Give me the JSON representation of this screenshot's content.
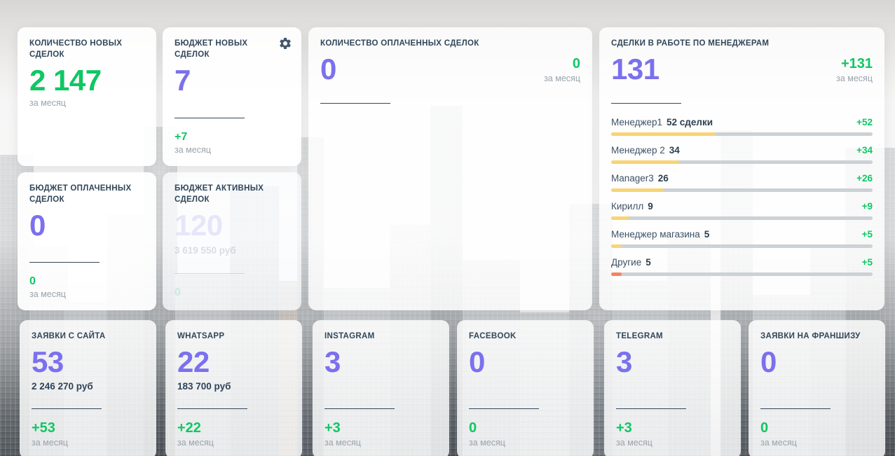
{
  "colors": {
    "accent_purple": "#7b70ee",
    "positive_green": "#0fc763",
    "title_navy": "#31465a",
    "muted_gray": "#99a3ac",
    "bar_track": "#ccd1d5",
    "bar_yellow": "#f7d476",
    "bar_orange": "#f4845c"
  },
  "cards": {
    "new_deals_count": {
      "title": "КОЛИЧЕСТВО НОВЫХ СДЕЛОК",
      "value": "2 147",
      "period": "за месяц"
    },
    "new_deals_budget": {
      "title": "БЮДЖЕТ НОВЫХ СДЕЛОК",
      "value": "7",
      "change": "+7",
      "period": "за месяц",
      "settings_icon": "gear-icon"
    },
    "paid_deals_count": {
      "title": "КОЛИЧЕСТВО ОПЛАЧЕННЫХ СДЕЛОК",
      "value": "0",
      "change": "0",
      "period": "за месяц"
    },
    "managers_deals": {
      "title": "СДЕЛКИ В РАБОТЕ ПО МЕНЕДЖЕРАМ",
      "value": "131",
      "change": "+131",
      "period": "за месяц",
      "rows": [
        {
          "name": "Менеджер1",
          "value": "52 сделки",
          "change": "+52",
          "percent": 40,
          "bar_color": "#f7d476"
        },
        {
          "name": "Менеджер 2",
          "value": "34",
          "change": "+34",
          "percent": 26,
          "bar_color": "#f7d476"
        },
        {
          "name": "Manager3",
          "value": "26",
          "change": "+26",
          "percent": 20,
          "bar_color": "#f7d476"
        },
        {
          "name": "Кирилл",
          "value": "9",
          "change": "+9",
          "percent": 7,
          "bar_color": "#f7d476"
        },
        {
          "name": "Менеджер магазина",
          "value": "5",
          "change": "+5",
          "percent": 4,
          "bar_color": "#f7d476"
        },
        {
          "name": "Другие",
          "value": "5",
          "change": "+5",
          "percent": 4,
          "bar_color": "#f4845c"
        }
      ]
    },
    "paid_deals_budget": {
      "title": "БЮДЖЕТ ОПЛАЧЕННЫХ СДЕЛОК",
      "value": "0",
      "change": "0",
      "period": "за месяц"
    },
    "active_deals_budget": {
      "title": "БЮДЖЕТ АКТИВНЫХ СДЕЛОК",
      "value": "120",
      "amount": "3 619 550 руб",
      "change": "0"
    }
  },
  "sources": [
    {
      "title": "ЗАЯВКИ С САЙТА",
      "value": "53",
      "amount": "2 246 270 руб",
      "change": "+53",
      "period": "за месяц"
    },
    {
      "title": "WHATSAPP",
      "value": "22",
      "amount": "183 700 руб",
      "change": "+22",
      "period": "за месяц"
    },
    {
      "title": "INSTAGRAM",
      "value": "3",
      "amount": "",
      "change": "+3",
      "period": "за месяц"
    },
    {
      "title": "FACEBOOK",
      "value": "0",
      "amount": "",
      "change": "0",
      "period": "за месяц"
    },
    {
      "title": "TELEGRAM",
      "value": "3",
      "amount": "",
      "change": "+3",
      "period": "за месяц"
    },
    {
      "title": "ЗАЯВКИ НА ФРАНШИЗУ",
      "value": "0",
      "amount": "",
      "change": "0",
      "period": "за месяц"
    }
  ]
}
